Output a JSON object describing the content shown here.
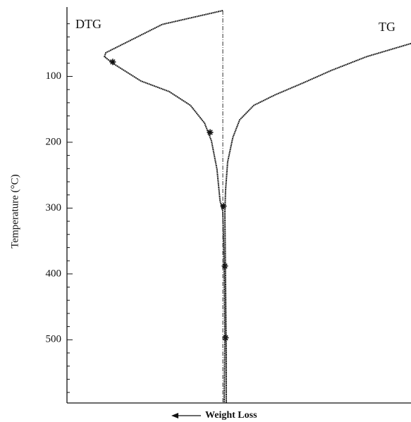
{
  "chart_data": {
    "type": "line",
    "orientation": "vertical",
    "y_inverted": true,
    "ylabel": "Temperature (°C)",
    "xlabel": "Weight Loss",
    "ylim": [
      0,
      596
    ],
    "yticks": [
      100,
      200,
      300,
      400,
      500
    ],
    "yminorticks": [
      20,
      40,
      60,
      80,
      120,
      140,
      160,
      180,
      220,
      240,
      260,
      280,
      320,
      340,
      360,
      380,
      420,
      440,
      460,
      480,
      520,
      540,
      560,
      580
    ],
    "xlim": [
      0,
      100
    ],
    "vline": 45.3,
    "series": [
      {
        "name": "DTG",
        "color": "#222",
        "x": [
          45.3,
          27.7,
          11.3,
          10.9,
          13.3,
          21.5,
          29.7,
          35.9,
          40,
          42,
          43.6,
          44.5,
          45.3,
          45.7,
          45.9,
          45.7
        ],
        "values": [
          0,
          21,
          64,
          70,
          80,
          107,
          123,
          144,
          171,
          198,
          241,
          289,
          305,
          390,
          497,
          596
        ],
        "markers": {
          "x": [
            13.3,
            41.6,
            45.5,
            45.9,
            46.1
          ],
          "values": [
            78,
            185,
            297,
            388,
            497
          ]
        }
      },
      {
        "name": "TG",
        "color": "#222",
        "x": [
          100,
          87.1,
          76.8,
          68.6,
          60.5,
          54.3,
          50.2,
          48.2,
          46.7,
          46.1,
          45.9,
          46.1,
          46.3,
          46.3
        ],
        "values": [
          50,
          70,
          91,
          110,
          128,
          144,
          166,
          193,
          230,
          273,
          305,
          412,
          519,
          596
        ]
      }
    ]
  }
}
